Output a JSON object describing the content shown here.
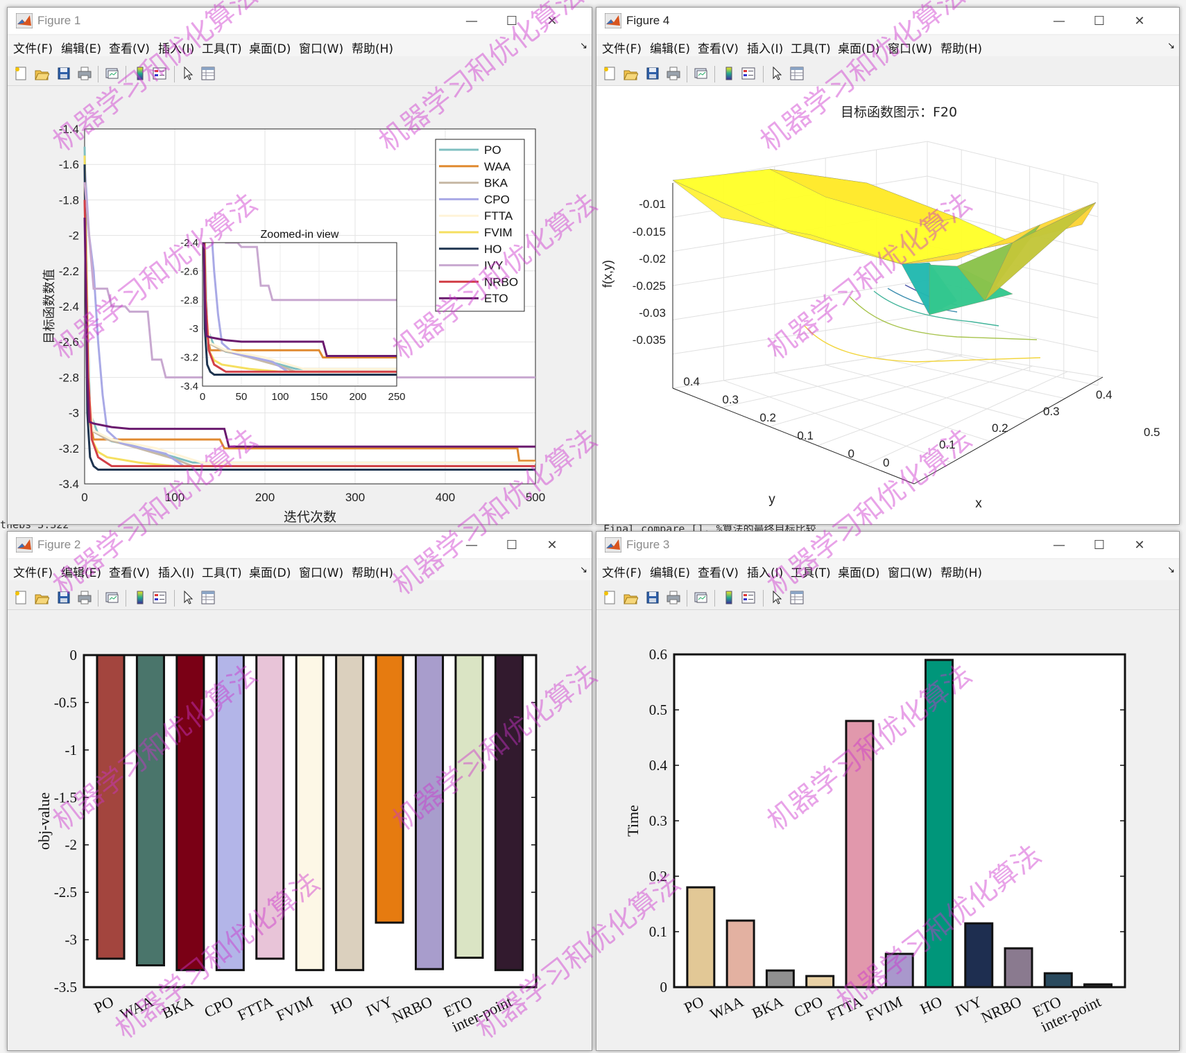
{
  "menus": [
    "文件(F)",
    "编辑(E)",
    "查看(V)",
    "插入(I)",
    "工具(T)",
    "桌面(D)",
    "窗口(W)",
    "帮助(H)"
  ],
  "background": {
    "snippet_left": "thebs    3.322",
    "snippet_right": "Final_compare [],        %算法的最终目标比较"
  },
  "watermark": "机器学习和优化算法",
  "fig1": {
    "title": "Figure 1",
    "chart_data": {
      "type": "line",
      "xlabel": "迭代次数",
      "ylabel": "目标函数数值",
      "xlim": [
        0,
        500
      ],
      "ylim": [
        -3.4,
        -1.4
      ],
      "xticks": [
        0,
        100,
        200,
        300,
        400,
        500
      ],
      "yticks": [
        -3.4,
        -3.2,
        -3,
        -2.8,
        -2.6,
        -2.4,
        -2.2,
        -2,
        -1.8,
        -1.6,
        -1.4
      ],
      "series": [
        {
          "name": "PO",
          "color": "#7fbfc0",
          "points": [
            [
              0,
              -1.5
            ],
            [
              3,
              -2.4
            ],
            [
              6,
              -3.0
            ],
            [
              15,
              -3.12
            ],
            [
              30,
              -3.16
            ],
            [
              50,
              -3.18
            ],
            [
              80,
              -3.22
            ],
            [
              120,
              -3.28
            ],
            [
              500,
              -3.28
            ]
          ]
        },
        {
          "name": "WAA",
          "color": "#e08a30",
          "points": [
            [
              0,
              -1.7
            ],
            [
              3,
              -2.7
            ],
            [
              6,
              -3.05
            ],
            [
              10,
              -3.15
            ],
            [
              150,
              -3.15
            ],
            [
              155,
              -3.2
            ],
            [
              480,
              -3.2
            ],
            [
              482,
              -3.27
            ],
            [
              500,
              -3.27
            ]
          ]
        },
        {
          "name": "BKA",
          "color": "#c7b9a6",
          "points": [
            [
              0,
              -1.8
            ],
            [
              4,
              -2.8
            ],
            [
              8,
              -3.1
            ],
            [
              25,
              -3.15
            ],
            [
              60,
              -3.2
            ],
            [
              100,
              -3.26
            ],
            [
              120,
              -3.3
            ],
            [
              500,
              -3.3
            ]
          ]
        },
        {
          "name": "CPO",
          "color": "#a9a9e6",
          "points": [
            [
              0,
              -1.6
            ],
            [
              5,
              -2.0
            ],
            [
              10,
              -2.2
            ],
            [
              15,
              -2.6
            ],
            [
              20,
              -2.9
            ],
            [
              25,
              -3.1
            ],
            [
              40,
              -3.17
            ],
            [
              90,
              -3.23
            ],
            [
              110,
              -3.3
            ],
            [
              500,
              -3.3
            ]
          ]
        },
        {
          "name": "FTTA",
          "color": "#fff4d8",
          "points": [
            [
              0,
              -1.7
            ],
            [
              5,
              -2.9
            ],
            [
              10,
              -3.1
            ],
            [
              30,
              -3.15
            ],
            [
              80,
              -3.2
            ],
            [
              130,
              -3.28
            ],
            [
              500,
              -3.28
            ]
          ]
        },
        {
          "name": "FVIM",
          "color": "#f5df60",
          "points": [
            [
              0,
              -1.55
            ],
            [
              4,
              -2.8
            ],
            [
              8,
              -3.15
            ],
            [
              15,
              -3.22
            ],
            [
              25,
              -3.25
            ],
            [
              60,
              -3.28
            ],
            [
              100,
              -3.3
            ],
            [
              500,
              -3.3
            ]
          ]
        },
        {
          "name": "HO",
          "color": "#1f3550",
          "points": [
            [
              0,
              -1.6
            ],
            [
              3,
              -3.0
            ],
            [
              6,
              -3.25
            ],
            [
              10,
              -3.3
            ],
            [
              15,
              -3.32
            ],
            [
              500,
              -3.32
            ]
          ]
        },
        {
          "name": "IVY",
          "color": "#c8a8d0",
          "points": [
            [
              0,
              -1.7
            ],
            [
              5,
              -2.0
            ],
            [
              10,
              -2.3
            ],
            [
              25,
              -2.3
            ],
            [
              30,
              -2.4
            ],
            [
              45,
              -2.4
            ],
            [
              50,
              -2.43
            ],
            [
              70,
              -2.43
            ],
            [
              75,
              -2.7
            ],
            [
              85,
              -2.7
            ],
            [
              90,
              -2.8
            ],
            [
              500,
              -2.8
            ]
          ]
        },
        {
          "name": "NRBO",
          "color": "#d24048",
          "points": [
            [
              0,
              -1.8
            ],
            [
              4,
              -2.8
            ],
            [
              8,
              -3.15
            ],
            [
              15,
              -3.25
            ],
            [
              30,
              -3.3
            ],
            [
              500,
              -3.3
            ]
          ]
        },
        {
          "name": "ETO",
          "color": "#6a1a6e",
          "points": [
            [
              0,
              -1.9
            ],
            [
              3,
              -2.8
            ],
            [
              5,
              -3.05
            ],
            [
              10,
              -3.06
            ],
            [
              30,
              -3.08
            ],
            [
              50,
              -3.09
            ],
            [
              155,
              -3.09
            ],
            [
              160,
              -3.19
            ],
            [
              500,
              -3.19
            ]
          ]
        }
      ],
      "inset": {
        "title": "Zoomed-in view",
        "xlim": [
          0,
          250
        ],
        "ylim": [
          -3.4,
          -2.4
        ],
        "xticks": [
          0,
          50,
          100,
          150,
          200,
          250
        ],
        "yticks": [
          -3.4,
          -3.2,
          -3,
          -2.8,
          -2.6,
          -2.4
        ]
      }
    }
  },
  "fig2": {
    "title": "Figure 2",
    "chart_data": {
      "type": "bar",
      "ylabel": "obj-value",
      "ylim": [
        -3.5,
        0
      ],
      "yticks": [
        0,
        -0.5,
        -1,
        -1.5,
        -2,
        -2.5,
        -3,
        -3.5
      ],
      "categories": [
        "PO",
        "WAA",
        "BKA",
        "CPO",
        "FTTA",
        "FVIM",
        "HO",
        "IVY",
        "NRBO",
        "ETO",
        "inter-point"
      ],
      "values": [
        -3.2,
        -3.27,
        -3.32,
        -3.32,
        -3.2,
        -3.32,
        -3.32,
        -2.82,
        -3.31,
        -3.19,
        -3.32
      ],
      "colors": [
        "#a3453e",
        "#4a756b",
        "#7a0015",
        "#b3b5e8",
        "#e8c4d8",
        "#fdf7e6",
        "#dbd0be",
        "#e67b10",
        "#a89dcc",
        "#dae4c4",
        "#321a2e"
      ]
    }
  },
  "fig3": {
    "title": "Figure 3",
    "chart_data": {
      "type": "bar",
      "ylabel": "Time",
      "ylim": [
        0,
        0.6
      ],
      "yticks": [
        0,
        0.1,
        0.2,
        0.3,
        0.4,
        0.5,
        0.6
      ],
      "categories": [
        "PO",
        "WAA",
        "BKA",
        "CPO",
        "FTTA",
        "FVIM",
        "HO",
        "IVY",
        "NRBO",
        "ETO",
        "inter-point"
      ],
      "values": [
        0.18,
        0.12,
        0.03,
        0.02,
        0.48,
        0.06,
        0.59,
        0.115,
        0.07,
        0.025,
        0.005
      ],
      "colors": [
        "#e2c896",
        "#e3b1a1",
        "#909090",
        "#e9d2a6",
        "#e198ac",
        "#a998cc",
        "#00967a",
        "#1e2e50",
        "#8a7a8f",
        "#2a4a5e",
        "#333333"
      ]
    }
  },
  "fig4": {
    "title": "Figure 4",
    "chart_data": {
      "type": "surface",
      "title": "目标函数图示：F20",
      "zlabel": "f(x,y)",
      "xlabel": "x",
      "ylabel": "y",
      "zticks": [
        "-0.01",
        "-0.015",
        "-0.02",
        "-0.025",
        "-0.03",
        "-0.035"
      ],
      "xticks": [
        "0",
        "0.1",
        "0.2",
        "0.3",
        "0.4",
        "0.5"
      ],
      "yticks": [
        "0",
        "0.1",
        "0.2",
        "0.3",
        "0.4"
      ]
    }
  }
}
